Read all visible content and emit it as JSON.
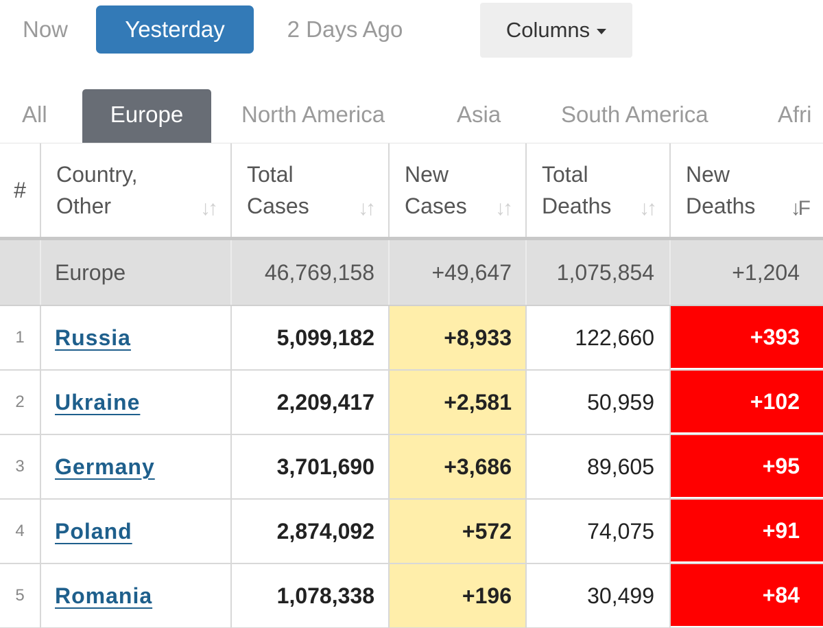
{
  "time_filters": {
    "now": "Now",
    "yesterday": "Yesterday",
    "two_days_ago": "2 Days Ago",
    "active": "Yesterday"
  },
  "columns_button": "Columns",
  "region_tabs": {
    "all": "All",
    "europe": "Europe",
    "north_america": "North America",
    "asia": "Asia",
    "south_america": "South America",
    "africa_partial": "Afri",
    "active": "Europe"
  },
  "headers": {
    "num": "#",
    "country_line1": "Country,",
    "country_line2": "Other",
    "total_cases_line1": "Total",
    "total_cases_line2": "Cases",
    "new_cases_line1": "New",
    "new_cases_line2": "Cases",
    "total_deaths_line1": "Total",
    "total_deaths_line2": "Deaths",
    "new_deaths_line1": "New",
    "new_deaths_line2": "Deaths"
  },
  "total_row": {
    "country": "Europe",
    "total_cases": "46,769,158",
    "new_cases": "+49,647",
    "total_deaths": "1,075,854",
    "new_deaths": "+1,204"
  },
  "rows": [
    {
      "num": "1",
      "country": "Russia",
      "total_cases": "5,099,182",
      "new_cases": "+8,933",
      "total_deaths": "122,660",
      "new_deaths": "+393"
    },
    {
      "num": "2",
      "country": "Ukraine",
      "total_cases": "2,209,417",
      "new_cases": "+2,581",
      "total_deaths": "50,959",
      "new_deaths": "+102"
    },
    {
      "num": "3",
      "country": "Germany",
      "total_cases": "3,701,690",
      "new_cases": "+3,686",
      "total_deaths": "89,605",
      "new_deaths": "+95"
    },
    {
      "num": "4",
      "country": "Poland",
      "total_cases": "2,874,092",
      "new_cases": "+572",
      "total_deaths": "74,075",
      "new_deaths": "+91"
    },
    {
      "num": "5",
      "country": "Romania",
      "total_cases": "1,078,338",
      "new_cases": "+196",
      "total_deaths": "30,499",
      "new_deaths": "+84"
    }
  ],
  "colors": {
    "active_button": "#337ab7",
    "active_tab": "#686d75",
    "new_cases_bg": "#ffeeaa",
    "new_deaths_bg": "#ff0000",
    "link": "#1e5f8c"
  },
  "icons": {
    "sort": "sort-arrows-icon",
    "sort_desc": "sort-descending-icon",
    "caret": "caret-down-icon"
  }
}
